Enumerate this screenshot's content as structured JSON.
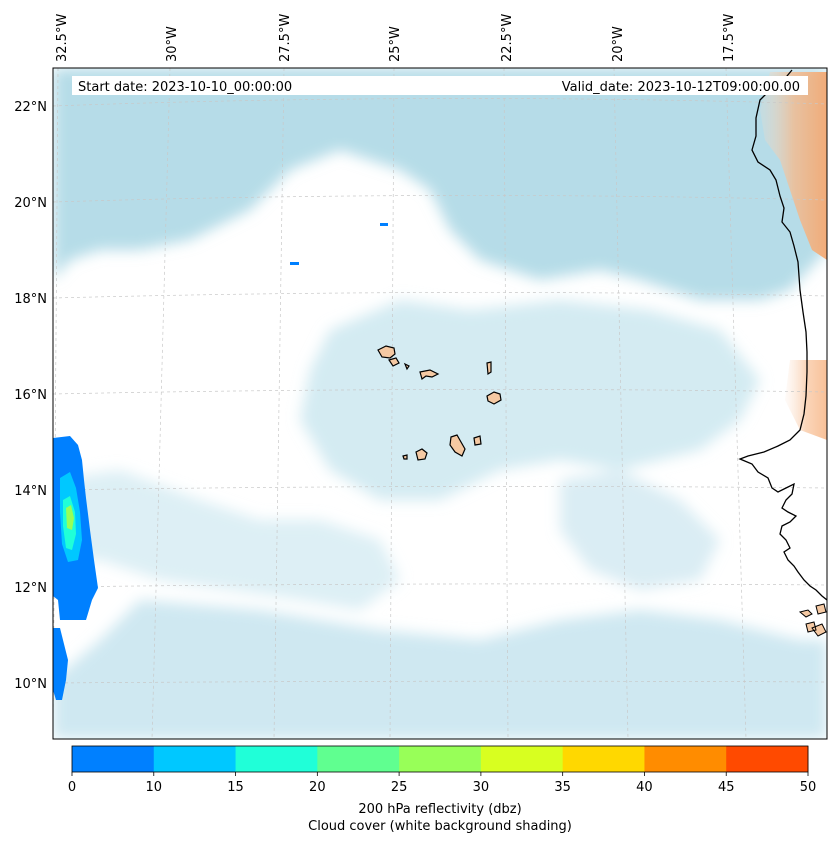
{
  "map": {
    "start_label": "Start date: 2023-10-10_00:00:00",
    "valid_label": "Valid_date: 2023-10-12T09:00:00.00",
    "lon_labels": [
      "32.5°W",
      "30°W",
      "27.5°W",
      "25°W",
      "22.5°W",
      "20°W",
      "17.5°W"
    ],
    "lat_labels": [
      "22°N",
      "20°N",
      "18°N",
      "16°N",
      "14°N",
      "12°N",
      "10°N"
    ]
  },
  "colorbar": {
    "ticks": [
      "0",
      "10",
      "15",
      "20",
      "25",
      "30",
      "35",
      "40",
      "45",
      "50"
    ],
    "colors": [
      "#0080ff",
      "#00c8ff",
      "#20ffd8",
      "#60ff90",
      "#98ff58",
      "#d8ff20",
      "#ffd800",
      "#ff8c00",
      "#ff4a00"
    ],
    "label_line1": "200 hPa reflectivity (dbz)",
    "label_line2": "Cloud cover (white background shading)"
  },
  "colors": {
    "cloud": "#b4dce8",
    "land": "#f5c9a3",
    "orange_shade": "#f7b98a"
  }
}
